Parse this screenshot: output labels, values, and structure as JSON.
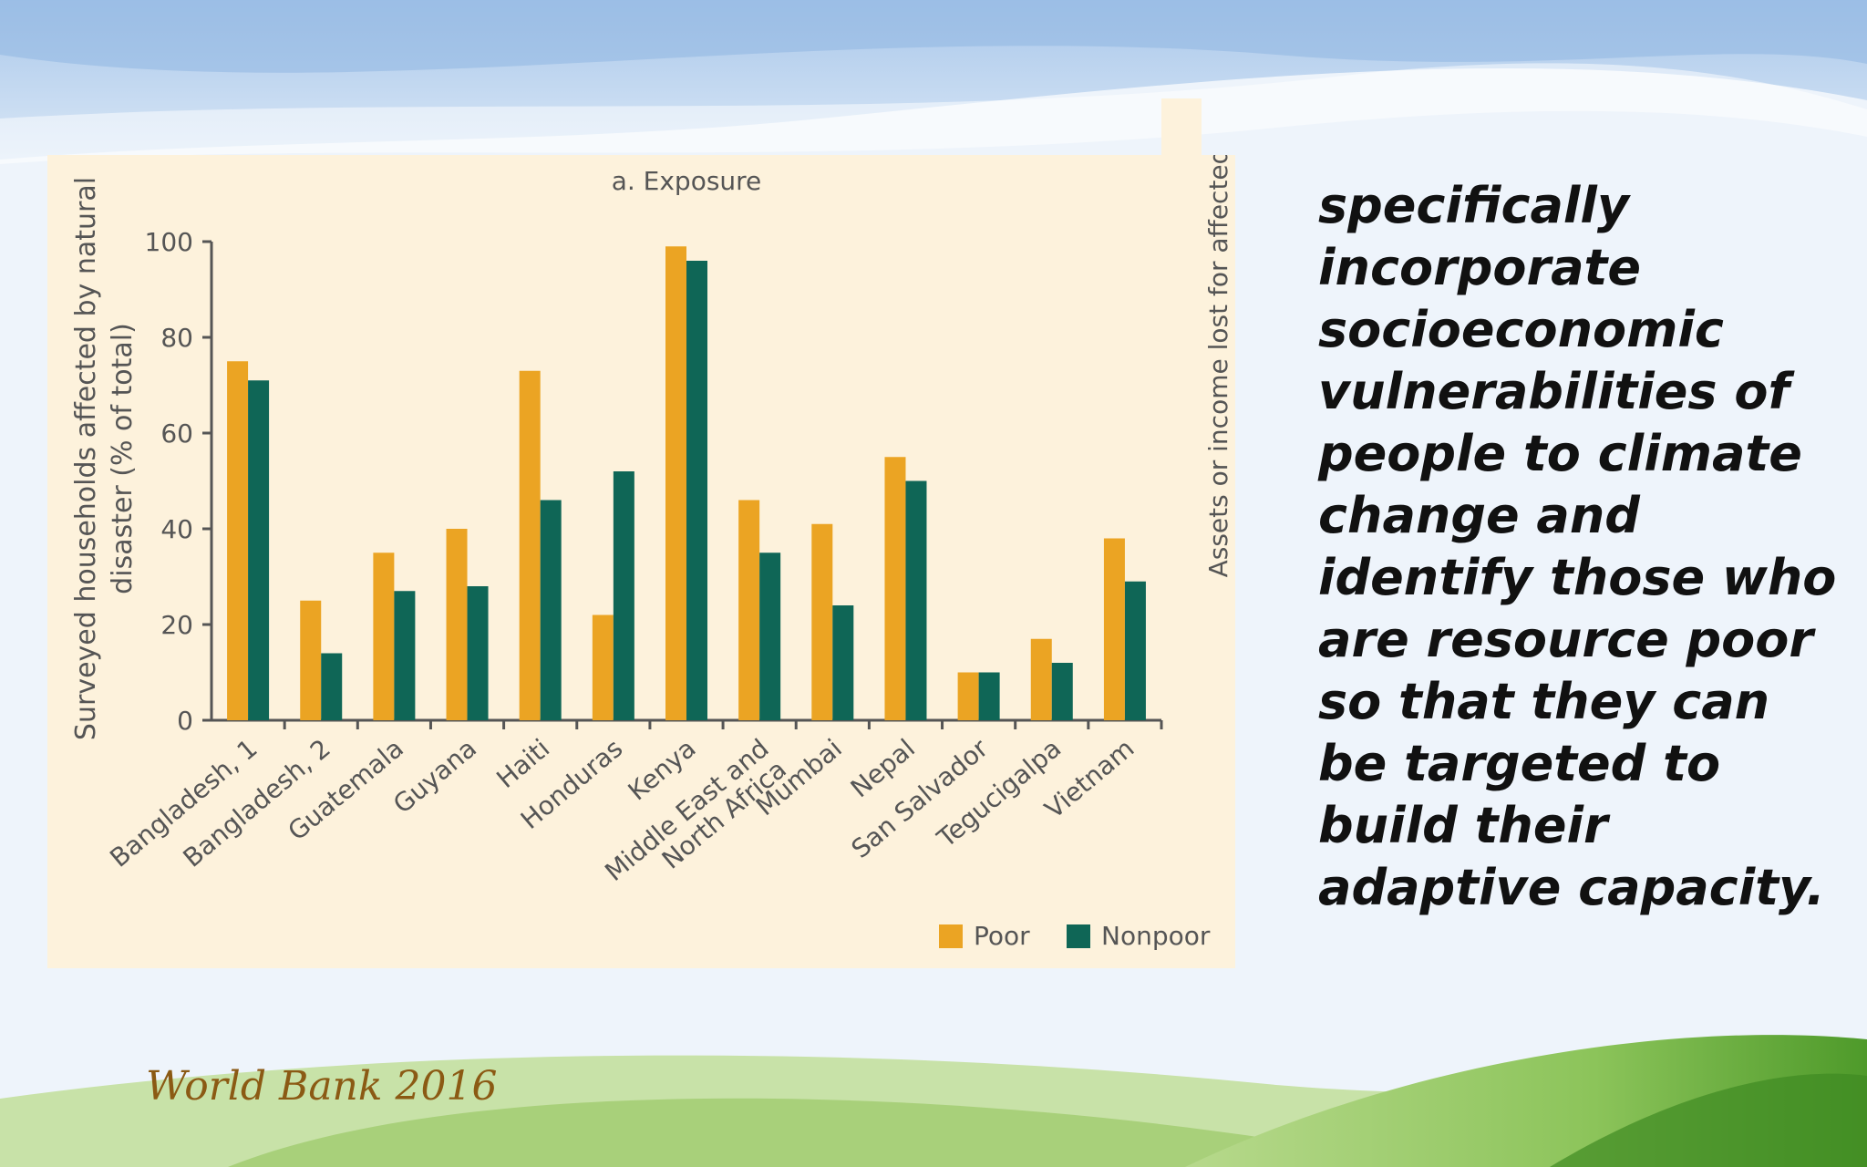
{
  "slide": {
    "body_text": "specifically incorporate socioeconomic vulnerabilities of people to climate change and identify those who are resource poor so that they can be targeted to build their adaptive capacity.",
    "credit": "World Bank 2016"
  },
  "colors": {
    "panel": "#fdf2dc",
    "poor": "#eba423",
    "nonpoor": "#0f6656",
    "axis": "#555555",
    "text": "#111111",
    "credit": "#8b5a14"
  },
  "chart_data": {
    "type": "bar",
    "title": "a. Exposure",
    "ylabel": "Surveyed households affected by natural disaster (% of total)",
    "right_label": "Assets or income lost for affected",
    "ylim": [
      0,
      100
    ],
    "yticks": [
      0,
      20,
      40,
      60,
      80,
      100
    ],
    "categories": [
      "Bangladesh, 1",
      "Bangladesh, 2",
      "Guatemala",
      "Guyana",
      "Haiti",
      "Honduras",
      "Kenya",
      "Middle East and North Africa",
      "Mumbai",
      "Nepal",
      "San Salvador",
      "Tegucigalpa",
      "Vietnam"
    ],
    "series": [
      {
        "name": "Poor",
        "color": "#eba423",
        "values": [
          75,
          25,
          35,
          40,
          73,
          22,
          99,
          46,
          41,
          55,
          10,
          17,
          38
        ]
      },
      {
        "name": "Nonpoor",
        "color": "#0f6656",
        "values": [
          71,
          14,
          27,
          28,
          46,
          52,
          96,
          35,
          24,
          50,
          10,
          12,
          29
        ]
      }
    ],
    "legend": "bottom-right",
    "grid": false
  }
}
